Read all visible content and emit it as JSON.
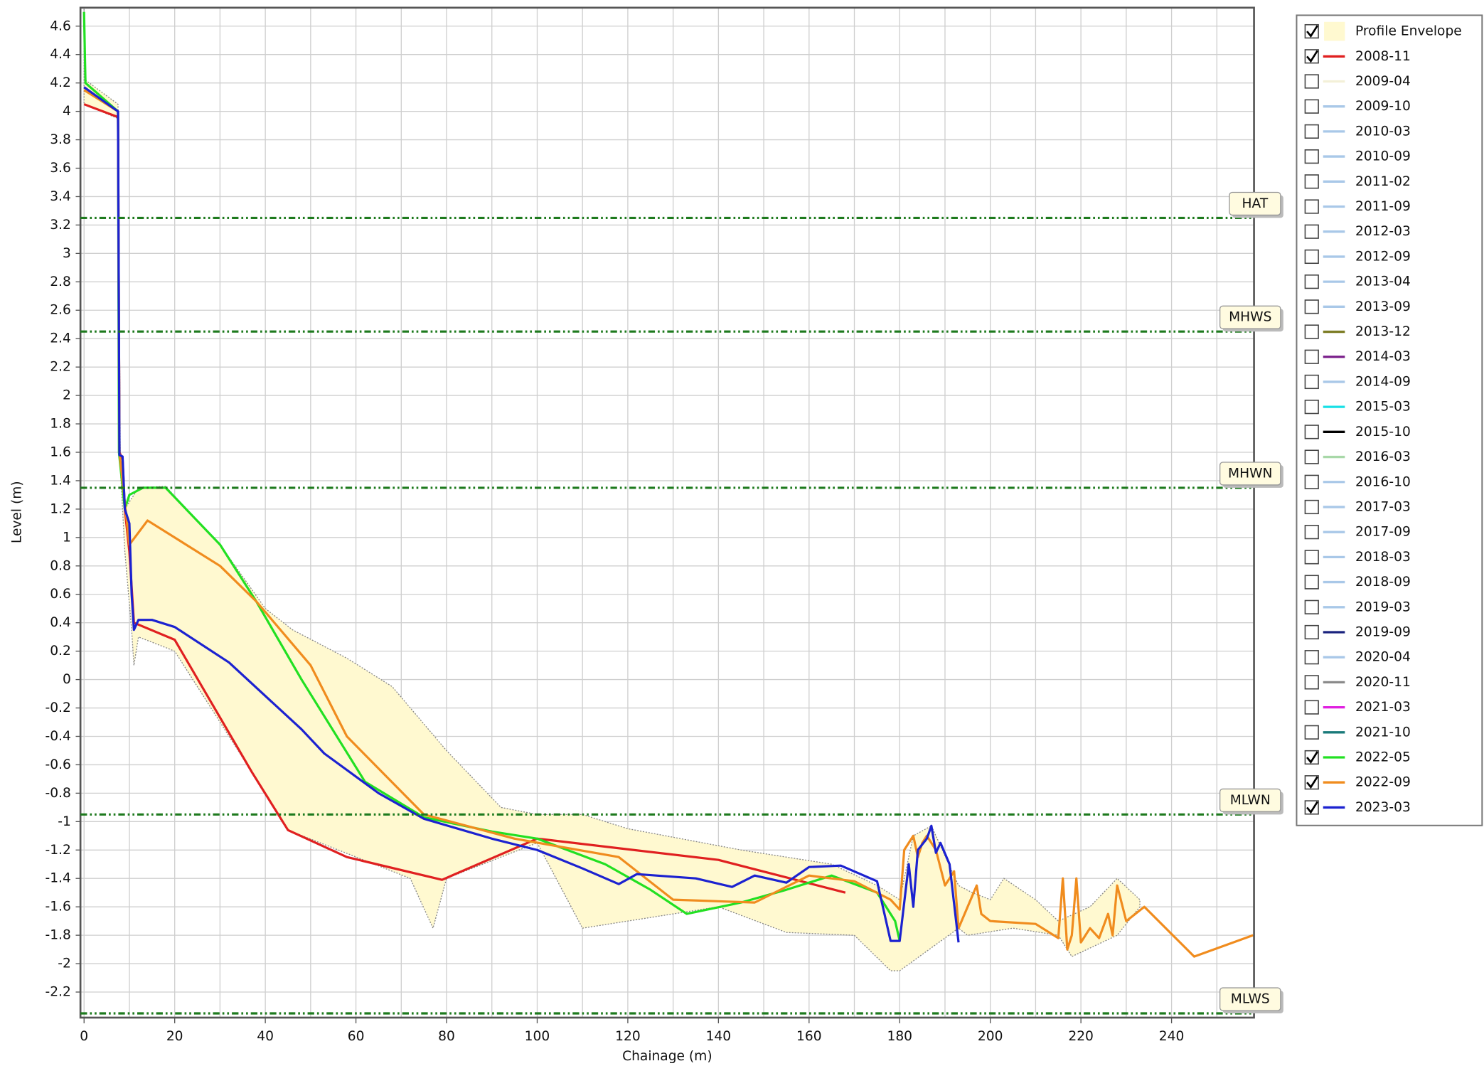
{
  "chart_data": {
    "type": "line",
    "xlabel": "Chainage (m)",
    "ylabel": "Level (m)",
    "xlim": [
      -0.8,
      258.2
    ],
    "ylim": [
      -2.38,
      4.73
    ],
    "xticks": [
      0,
      20,
      40,
      60,
      80,
      100,
      120,
      140,
      160,
      180,
      200,
      220,
      240
    ],
    "x_minor_grid": [
      10,
      30,
      50,
      70,
      90,
      110,
      130,
      150,
      170,
      190,
      210,
      230,
      250
    ],
    "yticks": [
      4.6,
      4.4,
      4.2,
      4,
      3.8,
      3.6,
      3.4,
      3.2,
      3,
      2.8,
      2.6,
      2.4,
      2.2,
      2,
      1.8,
      1.6,
      1.4,
      1.2,
      1,
      0.8,
      0.6,
      0.4,
      0.2,
      0,
      -0.2,
      -0.4,
      -0.6,
      -0.8,
      -1,
      -1.2,
      -1.4,
      -1.6,
      -1.8,
      -2,
      -2.2
    ],
    "grid": true,
    "legend_position": "right",
    "levels": [
      {
        "name": "HAT",
        "value": 3.25,
        "color": "#1e7a1e"
      },
      {
        "name": "MHWS",
        "value": 2.45,
        "color": "#1e7a1e"
      },
      {
        "name": "MHWN",
        "value": 1.35,
        "color": "#1e7a1e"
      },
      {
        "name": "MLWN",
        "value": -0.95,
        "color": "#1e7a1e"
      },
      {
        "name": "MLWS",
        "value": -2.35,
        "color": "#1e7a1e"
      }
    ],
    "series": [
      {
        "name": "Profile Envelope",
        "kind": "area",
        "color": "#fff9d0",
        "checked": true,
        "x": [
          0,
          0.3,
          7.5,
          8,
          9,
          12,
          18,
          30,
          40,
          46,
          58,
          68,
          80,
          92,
          100,
          110,
          120,
          145,
          165,
          175,
          180,
          183,
          187,
          193,
          196,
          200,
          203,
          210,
          215,
          222,
          228,
          233,
          233,
          228,
          218,
          215,
          205,
          195,
          193,
          180,
          178,
          170,
          155,
          140,
          110,
          100,
          80,
          77,
          72,
          45,
          37,
          20,
          12,
          11,
          10.5,
          9,
          8,
          7.5,
          0
        ],
        "values": [
          4.72,
          4.22,
          4.05,
          1.6,
          1.2,
          1.35,
          1.36,
          0.95,
          0.5,
          0.35,
          0.15,
          -0.05,
          -0.5,
          -0.9,
          -0.95,
          -0.95,
          -1.05,
          -1.2,
          -1.3,
          -1.45,
          -1.55,
          -1.1,
          -1.03,
          -1.45,
          -1.5,
          -1.55,
          -1.4,
          -1.55,
          -1.7,
          -1.6,
          -1.4,
          -1.55,
          -1.6,
          -1.8,
          -1.95,
          -1.8,
          -1.75,
          -1.8,
          -1.75,
          -2.05,
          -2.05,
          -1.8,
          -1.78,
          -1.6,
          -1.75,
          -1.15,
          -1.4,
          -1.75,
          -1.4,
          -1.06,
          -0.65,
          0.2,
          0.3,
          0.1,
          0.35,
          0.9,
          1.5,
          3.95,
          4.05
        ]
      },
      {
        "name": "2008-11",
        "color": "#e02020",
        "checked": true,
        "x": [
          0,
          7.5,
          7.8,
          8.5,
          9,
          10,
          11,
          20,
          37,
          45,
          58,
          79,
          100,
          140,
          168
        ],
        "values": [
          4.05,
          3.96,
          1.6,
          1.55,
          1.2,
          0.9,
          0.4,
          0.28,
          -0.65,
          -1.06,
          -1.25,
          -1.41,
          -1.12,
          -1.27,
          -1.5
        ]
      },
      {
        "name": "2009-04",
        "color": "#f3f0d8",
        "checked": false
      },
      {
        "name": "2009-10",
        "color": "#a9c8e8",
        "checked": false
      },
      {
        "name": "2010-03",
        "color": "#a9c8e8",
        "checked": false
      },
      {
        "name": "2010-09",
        "color": "#a9c8e8",
        "checked": false
      },
      {
        "name": "2011-02",
        "color": "#a9c8e8",
        "checked": false
      },
      {
        "name": "2011-09",
        "color": "#a9c8e8",
        "checked": false
      },
      {
        "name": "2012-03",
        "color": "#a9c8e8",
        "checked": false
      },
      {
        "name": "2012-09",
        "color": "#a9c8e8",
        "checked": false
      },
      {
        "name": "2013-04",
        "color": "#a9c8e8",
        "checked": false
      },
      {
        "name": "2013-09",
        "color": "#a9c8e8",
        "checked": false
      },
      {
        "name": "2013-12",
        "color": "#7d7d25",
        "checked": false
      },
      {
        "name": "2014-03",
        "color": "#7a1f8a",
        "checked": false
      },
      {
        "name": "2014-09",
        "color": "#a9c8e8",
        "checked": false
      },
      {
        "name": "2015-03",
        "color": "#18e0e6",
        "checked": false
      },
      {
        "name": "2015-10",
        "color": "#000000",
        "checked": false
      },
      {
        "name": "2016-03",
        "color": "#a8d8a8",
        "checked": false
      },
      {
        "name": "2016-10",
        "color": "#a9c8e8",
        "checked": false
      },
      {
        "name": "2017-03",
        "color": "#a9c8e8",
        "checked": false
      },
      {
        "name": "2017-09",
        "color": "#a9c8e8",
        "checked": false
      },
      {
        "name": "2018-03",
        "color": "#a9c8e8",
        "checked": false
      },
      {
        "name": "2018-09",
        "color": "#a9c8e8",
        "checked": false
      },
      {
        "name": "2019-03",
        "color": "#a9c8e8",
        "checked": false
      },
      {
        "name": "2019-09",
        "color": "#1a237e",
        "checked": false
      },
      {
        "name": "2020-04",
        "color": "#a9c8e8",
        "checked": false
      },
      {
        "name": "2020-11",
        "color": "#8a8a8a",
        "checked": false
      },
      {
        "name": "2021-03",
        "color": "#e020e0",
        "checked": false
      },
      {
        "name": "2021-10",
        "color": "#1a7a7a",
        "checked": false
      },
      {
        "name": "2022-05",
        "color": "#22e022",
        "checked": true,
        "x": [
          0,
          0.3,
          7.5,
          7.7,
          9,
          10,
          13,
          18,
          30,
          38,
          48,
          62,
          75,
          90,
          100,
          115,
          125,
          133,
          145,
          155,
          165,
          175,
          179,
          180
        ],
        "values": [
          4.7,
          4.2,
          4.0,
          1.6,
          1.2,
          1.3,
          1.35,
          1.35,
          0.95,
          0.55,
          0.0,
          -0.72,
          -0.97,
          -1.07,
          -1.12,
          -1.3,
          -1.48,
          -1.65,
          -1.57,
          -1.48,
          -1.38,
          -1.5,
          -1.7,
          -1.84
        ]
      },
      {
        "name": "2022-09",
        "color": "#f08c1e",
        "checked": true,
        "x": [
          0,
          7.5,
          7.8,
          10,
          14,
          30,
          38,
          50,
          58,
          75,
          95,
          118,
          130,
          148,
          160,
          170,
          178,
          180,
          181,
          183,
          184,
          185,
          186,
          188,
          190,
          192,
          193,
          197,
          198,
          200,
          210,
          215,
          216,
          217,
          218,
          219,
          220,
          222,
          224,
          226,
          227,
          228,
          230,
          234,
          245,
          258
        ],
        "values": [
          4.15,
          4.0,
          1.6,
          0.95,
          1.12,
          0.8,
          0.55,
          0.1,
          -0.4,
          -0.95,
          -1.12,
          -1.25,
          -1.55,
          -1.57,
          -1.38,
          -1.42,
          -1.55,
          -1.62,
          -1.2,
          -1.1,
          -1.25,
          -1.15,
          -1.1,
          -1.2,
          -1.45,
          -1.35,
          -1.75,
          -1.45,
          -1.65,
          -1.7,
          -1.72,
          -1.82,
          -1.4,
          -1.9,
          -1.8,
          -1.4,
          -1.85,
          -1.75,
          -1.82,
          -1.65,
          -1.8,
          -1.45,
          -1.7,
          -1.6,
          -1.95,
          -1.8
        ]
      },
      {
        "name": "2023-03",
        "color": "#1c22d0",
        "checked": true,
        "x": [
          0,
          7.5,
          7.8,
          8.5,
          9,
          10,
          10.5,
          11,
          12,
          15,
          20,
          32,
          48,
          53,
          65,
          75,
          90,
          100,
          110,
          118,
          122,
          135,
          143,
          148,
          155,
          160,
          167,
          175,
          178,
          180,
          182,
          183,
          184,
          186,
          187,
          188,
          189,
          191,
          193
        ],
        "values": [
          4.17,
          4.0,
          1.58,
          1.57,
          1.2,
          1.1,
          0.6,
          0.35,
          0.42,
          0.42,
          0.37,
          0.12,
          -0.35,
          -0.52,
          -0.8,
          -0.98,
          -1.12,
          -1.2,
          -1.33,
          -1.44,
          -1.37,
          -1.4,
          -1.46,
          -1.38,
          -1.43,
          -1.32,
          -1.31,
          -1.42,
          -1.84,
          -1.84,
          -1.3,
          -1.6,
          -1.2,
          -1.12,
          -1.03,
          -1.22,
          -1.15,
          -1.3,
          -1.85
        ]
      }
    ]
  }
}
